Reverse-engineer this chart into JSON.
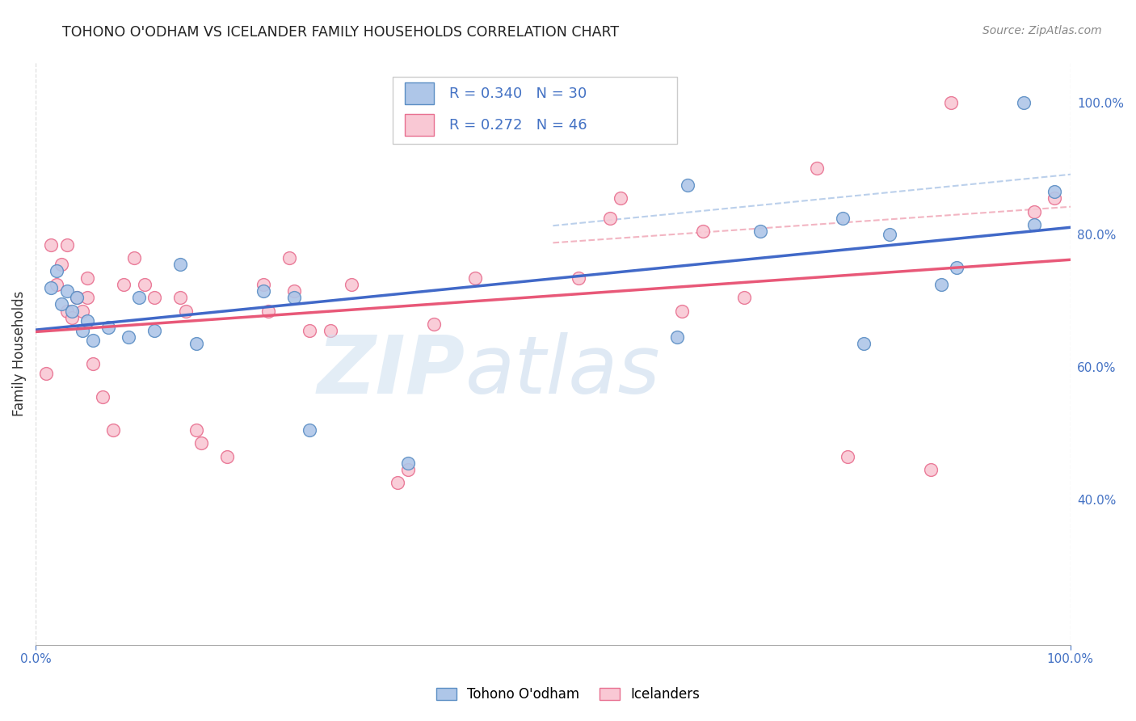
{
  "title": "TOHONO O'ODHAM VS ICELANDER FAMILY HOUSEHOLDS CORRELATION CHART",
  "source": "Source: ZipAtlas.com",
  "ylabel": "Family Households",
  "background_color": "#ffffff",
  "grid_color": "#dddddd",
  "blue_fill": "#aec6e8",
  "pink_fill": "#f9c8d4",
  "blue_edge": "#5b8ec4",
  "pink_edge": "#e87090",
  "blue_line_color": "#4169c8",
  "pink_line_color": "#e85878",
  "blue_dash_color": "#b0c8e8",
  "pink_dash_color": "#f0a8b8",
  "axis_tick_color": "#4472c4",
  "blue_r": 0.34,
  "blue_n": 30,
  "pink_r": 0.272,
  "pink_n": 46,
  "ymin": 0.18,
  "ymax": 1.06,
  "xmin": 0.0,
  "xmax": 1.0,
  "yticks": [
    1.0,
    0.8,
    0.6,
    0.4
  ],
  "ytick_labels": [
    "100.0%",
    "80.0%",
    "60.0%",
    "40.0%"
  ],
  "xticks": [
    0.0,
    1.0
  ],
  "xtick_labels": [
    "0.0%",
    "100.0%"
  ],
  "blue_points_x": [
    0.015,
    0.02,
    0.025,
    0.03,
    0.035,
    0.04,
    0.045,
    0.05,
    0.055,
    0.07,
    0.09,
    0.1,
    0.115,
    0.14,
    0.155,
    0.22,
    0.25,
    0.265,
    0.36,
    0.62,
    0.63,
    0.7,
    0.78,
    0.8,
    0.825,
    0.875,
    0.89,
    0.955,
    0.965,
    0.985
  ],
  "blue_points_y": [
    0.72,
    0.745,
    0.695,
    0.715,
    0.685,
    0.705,
    0.655,
    0.67,
    0.64,
    0.66,
    0.645,
    0.705,
    0.655,
    0.755,
    0.635,
    0.715,
    0.705,
    0.505,
    0.455,
    0.645,
    0.875,
    0.805,
    0.825,
    0.635,
    0.8,
    0.725,
    0.75,
    1.0,
    0.815,
    0.865
  ],
  "pink_points_x": [
    0.01,
    0.015,
    0.02,
    0.025,
    0.03,
    0.03,
    0.035,
    0.04,
    0.045,
    0.05,
    0.05,
    0.055,
    0.065,
    0.075,
    0.085,
    0.095,
    0.105,
    0.115,
    0.14,
    0.145,
    0.155,
    0.16,
    0.185,
    0.22,
    0.225,
    0.245,
    0.25,
    0.265,
    0.285,
    0.305,
    0.35,
    0.36,
    0.385,
    0.425,
    0.525,
    0.555,
    0.565,
    0.625,
    0.645,
    0.685,
    0.755,
    0.785,
    0.865,
    0.885,
    0.965,
    0.985
  ],
  "pink_points_y": [
    0.59,
    0.785,
    0.725,
    0.755,
    0.785,
    0.685,
    0.675,
    0.705,
    0.685,
    0.735,
    0.705,
    0.605,
    0.555,
    0.505,
    0.725,
    0.765,
    0.725,
    0.705,
    0.705,
    0.685,
    0.505,
    0.485,
    0.465,
    0.725,
    0.685,
    0.765,
    0.715,
    0.655,
    0.655,
    0.725,
    0.425,
    0.445,
    0.665,
    0.735,
    0.735,
    0.825,
    0.855,
    0.685,
    0.805,
    0.705,
    0.9,
    0.465,
    0.445,
    1.0,
    0.835,
    0.855
  ]
}
